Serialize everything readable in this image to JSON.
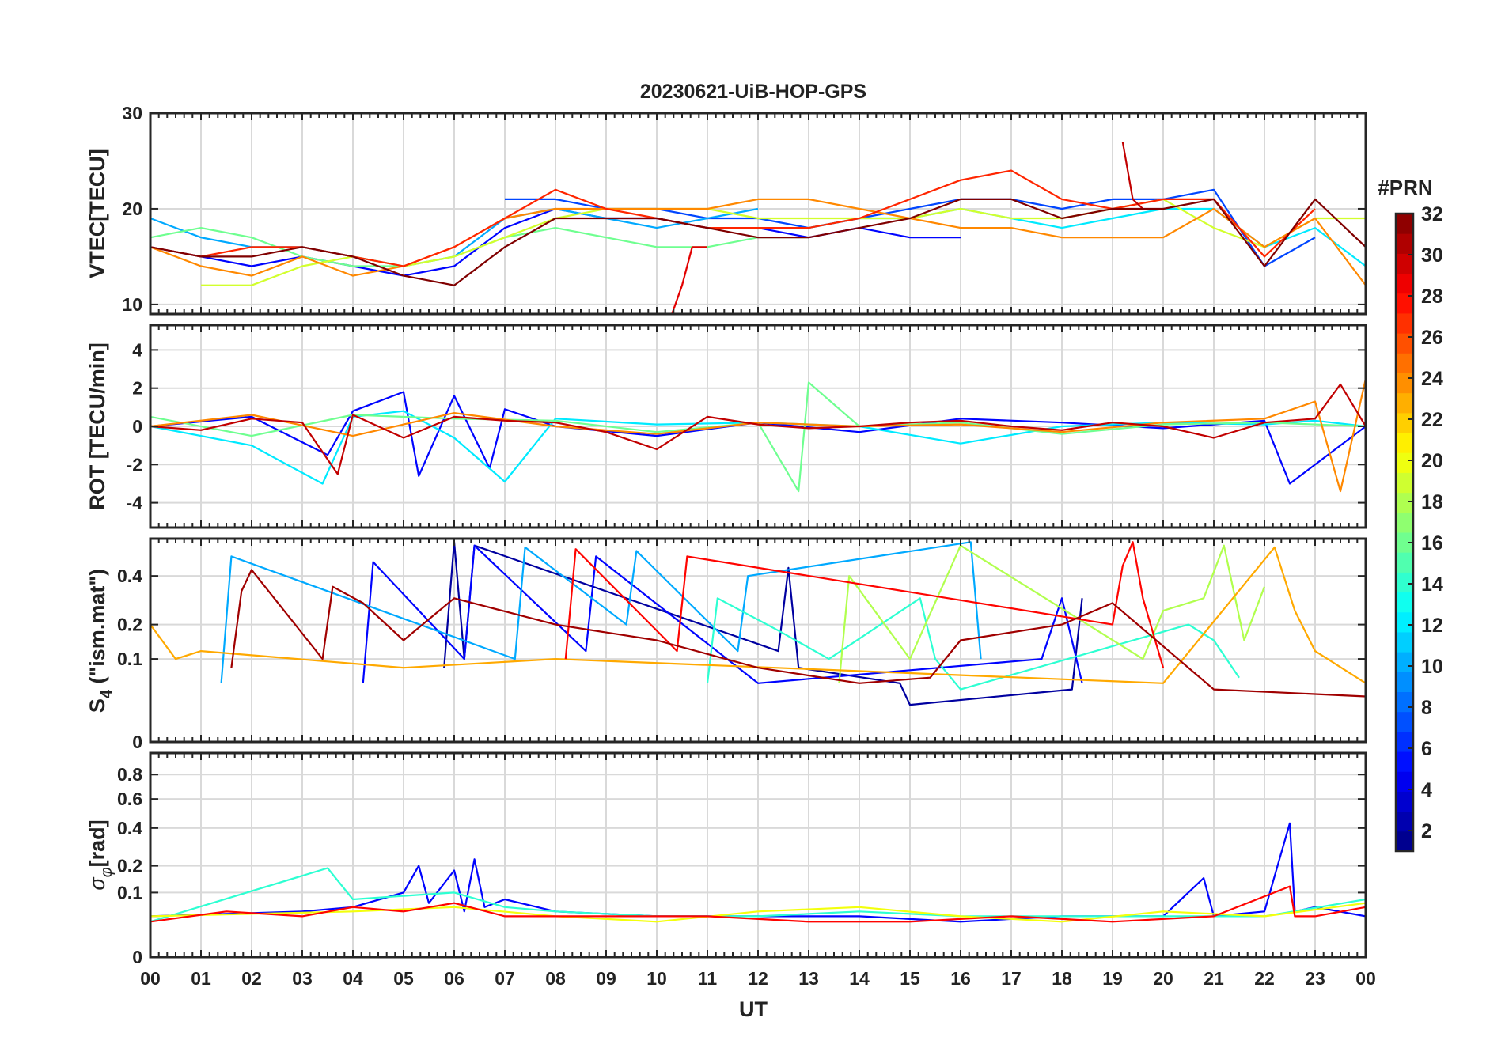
{
  "figure": {
    "title": "20230621-UiB-HOP-GPS",
    "xlabel": "UT"
  },
  "chart_data": [
    {
      "type": "line",
      "panel": "vtec",
      "ylabel": "VTEC[TECU]",
      "ylim": [
        9,
        30
      ],
      "yticks": [
        10,
        20,
        30
      ],
      "grid": true,
      "series": [
        {
          "prn": 5,
          "x": [
            0,
            1,
            2,
            3,
            4,
            5,
            6,
            7,
            8,
            9,
            10,
            11,
            12,
            13,
            14,
            15,
            16
          ],
          "values": [
            16,
            15,
            14,
            15,
            14,
            13,
            14,
            18,
            20,
            19,
            19,
            18,
            18,
            17,
            18,
            17,
            17
          ]
        },
        {
          "prn": 7,
          "x": [
            7,
            8,
            9,
            10,
            11,
            12,
            13,
            14,
            15,
            16,
            17,
            18,
            19,
            20,
            21,
            22,
            23
          ],
          "values": [
            21,
            21,
            20,
            20,
            19,
            19,
            18,
            19,
            20,
            21,
            21,
            20,
            21,
            21,
            22,
            14,
            17
          ]
        },
        {
          "prn": 10,
          "x": [
            0,
            1,
            2,
            3,
            4,
            5,
            6,
            7,
            8,
            9,
            10,
            11,
            12
          ],
          "values": [
            19,
            17,
            16,
            16,
            15,
            14,
            15,
            19,
            20,
            19,
            18,
            19,
            20
          ]
        },
        {
          "prn": 12,
          "x": [
            12,
            13,
            14,
            15,
            16,
            17,
            18,
            19,
            20,
            21,
            22,
            23,
            24
          ],
          "values": [
            18,
            18,
            19,
            19,
            20,
            19,
            18,
            19,
            20,
            20,
            16,
            18,
            14
          ]
        },
        {
          "prn": 16,
          "x": [
            0,
            1,
            2,
            3,
            4,
            5,
            6,
            7,
            8,
            9,
            10,
            11,
            12,
            13
          ],
          "values": [
            17,
            18,
            17,
            15,
            14,
            14,
            15,
            17,
            18,
            17,
            16,
            16,
            17,
            17
          ]
        },
        {
          "prn": 19,
          "x": [
            1,
            2,
            3,
            4,
            5,
            6,
            7,
            8,
            9,
            10,
            11,
            12,
            13,
            14,
            15,
            16,
            17,
            18,
            19,
            20,
            21,
            22,
            23,
            24
          ],
          "values": [
            12,
            12,
            14,
            15,
            14,
            15,
            17,
            19,
            20,
            20,
            20,
            19,
            19,
            19,
            19,
            20,
            19,
            19,
            20,
            21,
            18,
            16,
            19,
            19
          ]
        },
        {
          "prn": 24,
          "x": [
            0,
            1,
            2,
            3,
            4,
            5,
            6,
            7,
            8,
            9,
            10,
            11,
            12,
            13,
            14,
            15,
            16,
            17,
            18,
            19,
            20,
            21,
            22,
            23,
            24
          ],
          "values": [
            16,
            14,
            13,
            15,
            13,
            14,
            16,
            19,
            20,
            20,
            20,
            20,
            21,
            21,
            20,
            19,
            18,
            18,
            17,
            17,
            17,
            20,
            16,
            19,
            12
          ]
        },
        {
          "prn": 27,
          "x": [
            0,
            1,
            2,
            3,
            4,
            5,
            6,
            7,
            8,
            9,
            10,
            11,
            12,
            13,
            14,
            15,
            16,
            17,
            18,
            19,
            20,
            21,
            22,
            23
          ],
          "values": [
            16,
            15,
            16,
            16,
            15,
            14,
            16,
            19,
            22,
            20,
            19,
            18,
            18,
            18,
            19,
            21,
            23,
            24,
            21,
            20,
            21,
            21,
            15,
            20
          ]
        },
        {
          "prn": 29,
          "x": [
            10.3,
            10.5,
            10.7,
            11
          ],
          "values": [
            9,
            12,
            16,
            16
          ]
        },
        {
          "prn": 30,
          "x": [
            19.2,
            19.4,
            19.6
          ],
          "values": [
            27,
            21,
            20
          ]
        },
        {
          "prn": 32,
          "x": [
            0,
            1,
            2,
            3,
            4,
            5,
            6,
            7,
            8,
            9,
            10,
            11,
            12,
            13,
            14,
            15,
            16,
            17,
            18,
            19,
            20,
            21,
            22,
            23,
            24
          ],
          "values": [
            16,
            15,
            15,
            16,
            15,
            13,
            12,
            16,
            19,
            19,
            19,
            18,
            17,
            17,
            18,
            19,
            21,
            21,
            19,
            20,
            20,
            21,
            14,
            21,
            16
          ]
        }
      ]
    },
    {
      "type": "line",
      "panel": "rot",
      "ylabel": "ROT [TECU/min]",
      "ylim": [
        -5.3,
        5.3
      ],
      "yticks": [
        -4,
        -2,
        0,
        2,
        4
      ],
      "grid": true,
      "series": [
        {
          "prn": 5,
          "x": [
            0,
            2,
            3.5,
            4,
            5,
            5.3,
            6,
            6.7,
            7,
            8,
            10,
            12,
            14,
            16,
            18,
            20,
            22,
            22.5,
            24
          ],
          "values": [
            0,
            0.5,
            -1.5,
            0.8,
            1.8,
            -2.6,
            1.6,
            -2.2,
            0.9,
            0,
            -0.5,
            0.2,
            -0.3,
            0.4,
            0.2,
            -0.1,
            0.3,
            -3,
            0
          ]
        },
        {
          "prn": 12,
          "x": [
            0,
            2,
            3.4,
            4,
            5,
            6,
            7,
            8,
            10,
            12,
            14,
            16,
            18,
            20,
            22,
            23,
            24
          ],
          "values": [
            0,
            -1,
            -3,
            0.5,
            0.8,
            -0.6,
            -2.9,
            0.4,
            0.1,
            0.2,
            0,
            -0.9,
            0,
            0.2,
            0.1,
            0.3,
            0
          ]
        },
        {
          "prn": 16,
          "x": [
            0,
            2,
            4,
            6,
            8,
            10,
            12,
            12.8,
            13,
            14,
            16,
            18,
            20,
            22,
            24
          ],
          "values": [
            0.5,
            -0.5,
            0.6,
            0.4,
            0.3,
            -0.3,
            0.2,
            -3.4,
            2.3,
            0,
            0.2,
            -0.4,
            0.1,
            0.2,
            0
          ]
        },
        {
          "prn": 24,
          "x": [
            0,
            2,
            4,
            6,
            8,
            10,
            12,
            14,
            16,
            18,
            20,
            22,
            23,
            23.5,
            24
          ],
          "values": [
            0,
            0.6,
            -0.5,
            0.7,
            0,
            -0.4,
            0.2,
            0,
            0.1,
            -0.3,
            0.2,
            0.4,
            1.3,
            -3.4,
            2.5
          ]
        },
        {
          "prn": 30,
          "x": [
            0,
            1,
            2,
            3,
            3.7,
            4,
            5,
            6,
            7,
            8,
            9,
            10,
            11,
            12,
            13,
            14,
            15,
            16,
            17,
            18,
            19,
            20,
            21,
            22,
            23,
            23.5,
            24
          ],
          "values": [
            0,
            -0.2,
            0.4,
            0.2,
            -2.5,
            0.6,
            -0.6,
            0.5,
            0.3,
            0.2,
            -0.3,
            -1.2,
            0.5,
            0.1,
            -0.1,
            0,
            0.2,
            0.3,
            0,
            -0.2,
            0.2,
            0,
            -0.6,
            0.2,
            0.4,
            2.2,
            0
          ]
        }
      ]
    },
    {
      "type": "line",
      "panel": "s4",
      "ylabel": "S4 (\"ism.mat\")",
      "ylabel_main": "S",
      "ylabel_sub": "4",
      "ylabel_rest": " (\"ism.mat\")",
      "ylim": [
        0,
        0.6
      ],
      "yticks": [
        0,
        0.1,
        0.2,
        0.4
      ],
      "ytick_labels": [
        "0",
        "0.1",
        "0.2",
        "0.4"
      ],
      "scale": "log-like",
      "grid": true,
      "series": [
        {
          "prn": 2,
          "x": [
            5.8,
            6,
            6.2,
            6.4,
            12.4,
            12.6,
            12.8,
            14.8,
            15,
            18.2,
            18.4
          ],
          "values": [
            0.08,
            0.58,
            0.1,
            0.56,
            0.12,
            0.44,
            0.08,
            0.05,
            0.02,
            0.04,
            0.3
          ]
        },
        {
          "prn": 5,
          "x": [
            4.2,
            4.4,
            6.2,
            6.4,
            8.6,
            8.8,
            12,
            17.6,
            18,
            18.4
          ],
          "values": [
            0.05,
            0.47,
            0.1,
            0.56,
            0.12,
            0.5,
            0.05,
            0.1,
            0.3,
            0.05
          ]
        },
        {
          "prn": 10,
          "x": [
            1.4,
            1.6,
            7.2,
            7.4,
            9.4,
            9.6,
            11.6,
            11.8,
            16.2,
            16.4
          ],
          "values": [
            0.05,
            0.5,
            0.1,
            0.55,
            0.2,
            0.53,
            0.12,
            0.4,
            0.58,
            0.1
          ]
        },
        {
          "prn": 14,
          "x": [
            11,
            11.2,
            12.4,
            13.4,
            15.2,
            15.5,
            16,
            20.5,
            21,
            21.5
          ],
          "values": [
            0.05,
            0.3,
            0.18,
            0.1,
            0.3,
            0.1,
            0.04,
            0.2,
            0.15,
            0.06
          ]
        },
        {
          "prn": 18,
          "x": [
            13.6,
            13.8,
            15,
            16,
            19.6,
            20,
            20.8,
            21.2,
            21.6,
            22
          ],
          "values": [
            0.05,
            0.4,
            0.1,
            0.56,
            0.1,
            0.25,
            0.3,
            0.56,
            0.15,
            0.35
          ]
        },
        {
          "prn": 23,
          "x": [
            0,
            0.5,
            1,
            5,
            8,
            20,
            22.2,
            22.6,
            23,
            24
          ],
          "values": [
            0.2,
            0.1,
            0.12,
            0.08,
            0.1,
            0.05,
            0.55,
            0.25,
            0.12,
            0.05
          ]
        },
        {
          "prn": 28,
          "x": [
            8.2,
            8.4,
            10.4,
            10.6,
            19,
            19.2,
            19.4,
            19.6,
            20
          ],
          "values": [
            0.1,
            0.54,
            0.12,
            0.5,
            0.2,
            0.45,
            0.58,
            0.3,
            0.08
          ]
        },
        {
          "prn": 31,
          "x": [
            1.6,
            1.8,
            2,
            3.4,
            3.6,
            4.2,
            5,
            6,
            8,
            10,
            12,
            14,
            15.4,
            16,
            18,
            19,
            21,
            24
          ],
          "values": [
            0.08,
            0.33,
            0.43,
            0.1,
            0.35,
            0.28,
            0.15,
            0.3,
            0.2,
            0.15,
            0.08,
            0.05,
            0.06,
            0.15,
            0.2,
            0.28,
            0.04,
            0.03
          ]
        }
      ]
    },
    {
      "type": "line",
      "panel": "sigma_phi",
      "ylabel": "σφ[rad]",
      "ylabel_main": "σ",
      "ylabel_sub": "φ",
      "ylabel_rest": "[rad]",
      "ylim": [
        0,
        1
      ],
      "yticks": [
        0,
        0.1,
        0.2,
        0.4,
        0.6,
        0.8
      ],
      "ytick_labels": [
        "0",
        "0.1",
        "0.2",
        "0.4",
        "0.6",
        "0.8"
      ],
      "scale": "log-like",
      "grid": true,
      "series": [
        {
          "prn": 5,
          "x": [
            0,
            3,
            4,
            5,
            5.3,
            5.5,
            6,
            6.2,
            6.4,
            6.6,
            7,
            8,
            10,
            12,
            14,
            16,
            18,
            20,
            20.8,
            21,
            22,
            22.5,
            22.6,
            23,
            24
          ],
          "values": [
            0.04,
            0.05,
            0.06,
            0.1,
            0.2,
            0.07,
            0.18,
            0.05,
            0.23,
            0.06,
            0.08,
            0.05,
            0.04,
            0.04,
            0.04,
            0.03,
            0.04,
            0.04,
            0.15,
            0.04,
            0.05,
            0.43,
            0.05,
            0.06,
            0.04
          ]
        },
        {
          "prn": 14,
          "x": [
            0,
            3.5,
            4,
            5,
            6,
            7,
            8,
            10,
            12,
            14,
            16,
            18,
            20,
            22,
            24
          ],
          "values": [
            0.03,
            0.19,
            0.08,
            0.09,
            0.1,
            0.06,
            0.05,
            0.04,
            0.04,
            0.05,
            0.04,
            0.04,
            0.04,
            0.04,
            0.08
          ]
        },
        {
          "prn": 20,
          "x": [
            0,
            4,
            6,
            8,
            10,
            12,
            14,
            16,
            18,
            20,
            22,
            24
          ],
          "values": [
            0.04,
            0.05,
            0.06,
            0.04,
            0.03,
            0.05,
            0.06,
            0.04,
            0.03,
            0.05,
            0.04,
            0.07
          ]
        },
        {
          "prn": 28,
          "x": [
            0,
            1.5,
            3,
            4,
            5,
            6,
            7,
            9,
            11,
            13,
            15,
            17,
            19,
            21,
            22.5,
            22.6,
            23,
            24
          ],
          "values": [
            0.03,
            0.05,
            0.04,
            0.06,
            0.05,
            0.07,
            0.04,
            0.04,
            0.04,
            0.03,
            0.03,
            0.04,
            0.03,
            0.04,
            0.12,
            0.04,
            0.04,
            0.06
          ]
        }
      ]
    }
  ],
  "xaxis": {
    "range": [
      0,
      24
    ],
    "tick_labels": [
      "00",
      "01",
      "02",
      "03",
      "04",
      "05",
      "06",
      "07",
      "08",
      "09",
      "10",
      "11",
      "12",
      "13",
      "14",
      "15",
      "16",
      "17",
      "18",
      "19",
      "20",
      "21",
      "22",
      "23",
      "00"
    ]
  },
  "colorbar": {
    "label": "#PRN",
    "range": [
      1,
      32
    ],
    "tick_values": [
      2,
      4,
      6,
      8,
      10,
      12,
      14,
      16,
      18,
      20,
      22,
      24,
      26,
      28,
      30,
      32
    ],
    "colormap": "jet"
  }
}
